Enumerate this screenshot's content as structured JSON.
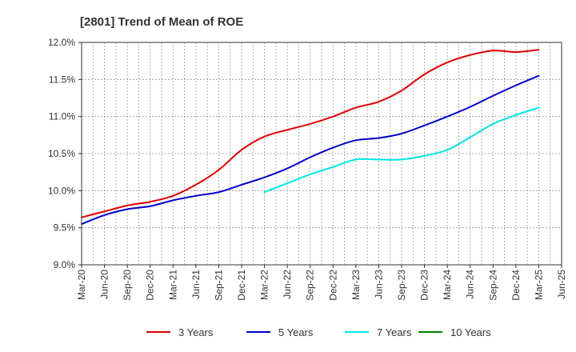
{
  "chart_data": {
    "type": "line",
    "title": "[2801]  Trend of Mean of ROE",
    "xlabel": "",
    "ylabel": "",
    "x": [
      "Mar-20",
      "Jun-20",
      "Sep-20",
      "Dec-20",
      "Mar-21",
      "Jun-21",
      "Sep-21",
      "Dec-21",
      "Mar-22",
      "Jun-22",
      "Sep-22",
      "Dec-22",
      "Mar-23",
      "Jun-23",
      "Sep-23",
      "Dec-23",
      "Mar-24",
      "Jun-24",
      "Sep-24",
      "Dec-24",
      "Mar-25",
      "Jun-25"
    ],
    "y_ticks": [
      "9.0%",
      "9.5%",
      "10.0%",
      "10.5%",
      "11.0%",
      "11.5%",
      "12.0%"
    ],
    "ylim": [
      9.0,
      12.0
    ],
    "grid": true,
    "legend_position": "bottom",
    "series": [
      {
        "name": "3 Years",
        "color": "#e00000",
        "values": [
          9.64,
          9.72,
          9.8,
          9.85,
          9.93,
          10.08,
          10.28,
          10.55,
          10.73,
          10.82,
          10.9,
          11.0,
          11.12,
          11.2,
          11.35,
          11.57,
          11.73,
          11.83,
          11.89,
          11.87,
          11.9,
          null
        ]
      },
      {
        "name": "5 Years",
        "color": "#0000cc",
        "values": [
          9.55,
          9.67,
          9.75,
          9.79,
          9.87,
          9.93,
          9.98,
          10.08,
          10.18,
          10.3,
          10.45,
          10.58,
          10.68,
          10.71,
          10.77,
          10.88,
          11.0,
          11.13,
          11.28,
          11.42,
          11.55,
          null
        ]
      },
      {
        "name": "7 Years",
        "color": "#00e5e5",
        "values": [
          null,
          null,
          null,
          null,
          null,
          null,
          null,
          null,
          9.98,
          10.1,
          10.22,
          10.32,
          10.42,
          10.42,
          10.42,
          10.47,
          10.55,
          10.72,
          10.9,
          11.02,
          11.12,
          null
        ]
      },
      {
        "name": "10 Years",
        "color": "#008000",
        "values": [
          null,
          null,
          null,
          null,
          null,
          null,
          null,
          null,
          null,
          null,
          null,
          null,
          null,
          null,
          null,
          null,
          null,
          null,
          null,
          null,
          null,
          null
        ]
      }
    ]
  }
}
